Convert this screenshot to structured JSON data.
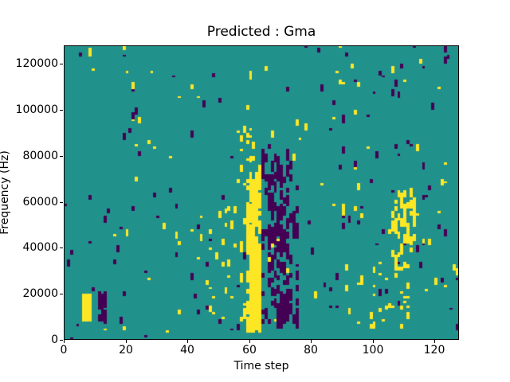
{
  "chart_data": {
    "type": "heatmap",
    "title": "Predicted : Gma",
    "xlabel": "Time step",
    "ylabel": "Frequency (Hz)",
    "x_range": [
      0,
      128
    ],
    "y_range": [
      0,
      128000
    ],
    "x_ticks": [
      0,
      20,
      40,
      60,
      80,
      100,
      120
    ],
    "y_ticks": [
      0,
      20000,
      40000,
      60000,
      80000,
      100000,
      120000
    ],
    "grid": {
      "cols": 128,
      "rows": 128,
      "hz_per_row": 1000
    },
    "colormap": {
      "name": "viridis",
      "neutral": "#21918c",
      "high": "#fde725",
      "low": "#440154"
    },
    "axes_color": "#000000",
    "background": "#ffffff",
    "legend": null,
    "pattern": {
      "description": "ternary heatmap: teal neutral field with sparse vertical runs of high (yellow) and low (purple) cells; dominant yellow band near time 60-63 below 70000 Hz and purple cluster near time 64-76",
      "seed": 1337,
      "base_noise": [
        {
          "t": [
            0,
            64
          ],
          "f": [
            64,
            128
          ],
          "p_high": 0.005,
          "p_low": 0.005
        },
        {
          "t": [
            64,
            128
          ],
          "f": [
            64,
            128
          ],
          "p_high": 0.006,
          "p_low": 0.007
        },
        {
          "t": [
            0,
            64
          ],
          "f": [
            4,
            64
          ],
          "p_high": 0.0095,
          "p_low": 0.0095
        },
        {
          "t": [
            64,
            128
          ],
          "f": [
            4,
            64
          ],
          "p_high": 0.0095,
          "p_low": 0.013
        },
        {
          "t": [
            0,
            128
          ],
          "f": [
            0,
            4
          ],
          "p_high": 0.0035,
          "p_low": 0.0035
        }
      ],
      "features": [
        {
          "name": "yellow-column-halo",
          "color": "high",
          "t": [
            44,
            59
          ],
          "f": [
            8,
            56
          ],
          "p": 0.03,
          "run": [
            1,
            3
          ]
        },
        {
          "name": "yellow-band",
          "color": "high",
          "t": [
            59,
            64
          ],
          "f": [
            3,
            70
          ],
          "p": 0.4,
          "run": [
            2,
            6
          ]
        },
        {
          "name": "yellow-band-core",
          "color": "high",
          "t": [
            60,
            63
          ],
          "f": [
            4,
            32
          ],
          "p": 0.92,
          "run": [
            4,
            9
          ]
        },
        {
          "name": "band-top-scatter",
          "color": "high",
          "t": [
            56,
            64
          ],
          "f": [
            64,
            92
          ],
          "p": 0.1,
          "run": [
            1,
            3
          ]
        },
        {
          "name": "purple-cluster",
          "color": "low",
          "t": [
            64,
            76
          ],
          "f": [
            5,
            80
          ],
          "p": 0.1,
          "run": [
            2,
            5
          ]
        },
        {
          "name": "purple-cluster-mid",
          "color": "low",
          "t": [
            66,
            73
          ],
          "f": [
            26,
            62
          ],
          "p": 0.18,
          "run": [
            2,
            6
          ]
        },
        {
          "name": "purple-block-low",
          "color": "low",
          "t": [
            69,
            73
          ],
          "f": [
            7,
            18
          ],
          "p": 0.45,
          "run": [
            3,
            7
          ]
        },
        {
          "name": "purple-upper-cluster",
          "color": "low",
          "t": [
            64,
            71
          ],
          "f": [
            64,
            78
          ],
          "p": 0.16,
          "run": [
            2,
            4
          ]
        },
        {
          "name": "yellow-block-left",
          "color": "high",
          "t": [
            6,
            9
          ],
          "f": [
            8,
            17
          ],
          "p": 0.7,
          "run": [
            3,
            6
          ]
        },
        {
          "name": "purple-block-left",
          "color": "low",
          "t": [
            11,
            14
          ],
          "f": [
            7,
            17
          ],
          "p": 0.65,
          "run": [
            3,
            6
          ]
        },
        {
          "name": "yellow-diag-right",
          "color": "high",
          "t": [
            106,
            114
          ],
          "f": [
            28,
            64
          ],
          "p": 0.16,
          "run": [
            2,
            4
          ]
        },
        {
          "name": "yellow-right-low",
          "color": "high",
          "t": [
            95,
            112
          ],
          "f": [
            8,
            30
          ],
          "p": 0.05,
          "run": [
            1,
            3
          ]
        }
      ]
    }
  }
}
